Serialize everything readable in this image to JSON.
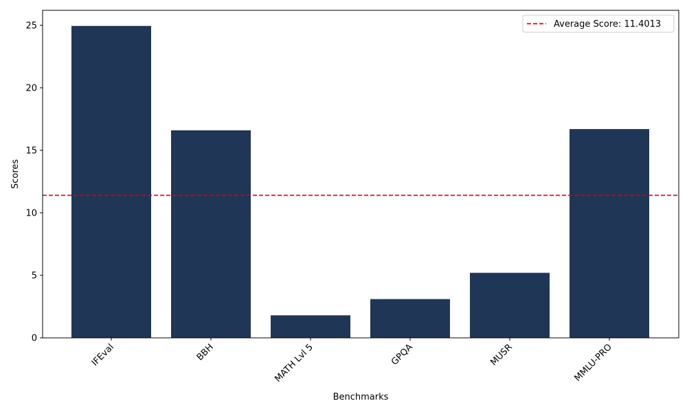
{
  "chart_data": {
    "type": "bar",
    "categories": [
      "IFEval",
      "BBH",
      "MATH Lvl 5",
      "GPQA",
      "MUSR",
      "MMLU-PRO"
    ],
    "values": [
      24.95,
      16.6,
      1.8,
      3.1,
      5.2,
      16.7
    ],
    "title": "",
    "xlabel": "Benchmarks",
    "ylabel": "Scores",
    "ylim": [
      0,
      26.2
    ],
    "yticks": [
      0,
      5,
      10,
      15,
      20,
      25
    ],
    "grid": false,
    "bar_color": "#1f3656",
    "average": {
      "value": 11.4013,
      "label": "Average Score: 11.4013",
      "color": "#e00000",
      "style": "dashed"
    },
    "legend_position": "top-right"
  }
}
